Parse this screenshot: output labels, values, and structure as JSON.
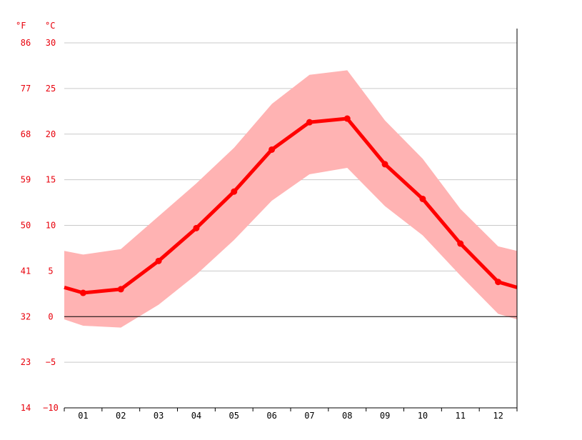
{
  "chart_data": {
    "type": "line",
    "title": "",
    "units": {
      "left": "°F",
      "right": "°C"
    },
    "categories": [
      "01",
      "02",
      "03",
      "04",
      "05",
      "06",
      "07",
      "08",
      "09",
      "10",
      "11",
      "12"
    ],
    "series": [
      {
        "role": "mean",
        "values": [
          2.6,
          3.0,
          6.1,
          9.7,
          13.7,
          18.3,
          21.3,
          21.7,
          16.7,
          12.9,
          8.0,
          3.8
        ]
      },
      {
        "role": "max",
        "values": [
          6.8,
          7.4,
          11.0,
          14.6,
          18.5,
          23.3,
          26.5,
          27.0,
          21.5,
          17.3,
          11.8,
          7.7
        ]
      },
      {
        "role": "min",
        "values": [
          -1.0,
          -1.2,
          1.3,
          4.6,
          8.4,
          12.7,
          15.6,
          16.3,
          12.1,
          8.9,
          4.5,
          0.3
        ]
      }
    ],
    "boundary": {
      "start": {
        "mean": 3.2,
        "max": 7.2,
        "min": -0.3
      },
      "end": {
        "mean": 3.2,
        "max": 7.2,
        "min": -0.3
      }
    },
    "ylim": [
      -10,
      30
    ],
    "yticks_c": [
      "30",
      "25",
      "20",
      "15",
      "10",
      "5",
      "0",
      "−5",
      "−10"
    ],
    "yticks_f": [
      "86",
      "77",
      "68",
      "59",
      "50",
      "41",
      "32",
      "23",
      "14"
    ],
    "grid": true,
    "colors": {
      "line": "#ff0000",
      "band": "#ffb3b3",
      "axis_text": "#e8000b"
    }
  }
}
